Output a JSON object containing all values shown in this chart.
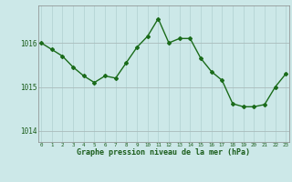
{
  "x": [
    0,
    1,
    2,
    3,
    4,
    5,
    6,
    7,
    8,
    9,
    10,
    11,
    12,
    13,
    14,
    15,
    16,
    17,
    18,
    19,
    20,
    21,
    22,
    23
  ],
  "y": [
    1016.0,
    1015.85,
    1015.7,
    1015.45,
    1015.25,
    1015.1,
    1015.25,
    1015.2,
    1015.55,
    1015.9,
    1016.15,
    1016.55,
    1016.0,
    1016.1,
    1016.1,
    1015.65,
    1015.35,
    1015.15,
    1014.62,
    1014.55,
    1014.55,
    1014.6,
    1015.0,
    1015.3
  ],
  "line_color": "#1a6b1a",
  "marker_color": "#1a6b1a",
  "bg_color": "#cce8e8",
  "grid_color_v": "#b0d0d0",
  "grid_color_h": "#aabbbb",
  "xlabel": "Graphe pression niveau de la mer (hPa)",
  "yticks": [
    1014,
    1015,
    1016
  ],
  "ylim": [
    1013.75,
    1016.85
  ],
  "xlim": [
    -0.3,
    23.3
  ]
}
